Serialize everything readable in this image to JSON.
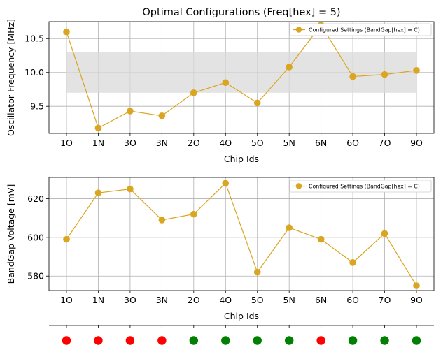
{
  "chart_data": [
    {
      "type": "line",
      "title": "Optimal Configurations  (Freq[hex] = 5)",
      "xlabel": "Chip Ids",
      "ylabel": "Oscillator Frequency [MHz]",
      "categories": [
        "1O",
        "1N",
        "3O",
        "3N",
        "2O",
        "4O",
        "5O",
        "5N",
        "6N",
        "6O",
        "7O",
        "9O"
      ],
      "series": [
        {
          "name": "Configured Settings (BandGap[hex] = C)",
          "values": [
            10.6,
            9.18,
            9.43,
            9.36,
            9.7,
            9.85,
            9.55,
            10.08,
            10.7,
            9.94,
            9.97,
            10.03
          ],
          "color": "#daa520"
        }
      ],
      "band": {
        "low": 9.7,
        "high": 10.3,
        "color": "#d9d9d9"
      },
      "ylim": [
        9.1,
        10.75
      ],
      "yticks": [
        9.5,
        10.0,
        10.5
      ],
      "ytick_labels": [
        "9.5",
        "10.0",
        "10.5"
      ],
      "grid": true,
      "legend": "top-right"
    },
    {
      "type": "line",
      "title": "",
      "xlabel": "Chip Ids",
      "ylabel": "BandGap Voltage [mV]",
      "categories": [
        "1O",
        "1N",
        "3O",
        "3N",
        "2O",
        "4O",
        "5O",
        "5N",
        "6N",
        "6O",
        "7O",
        "9O"
      ],
      "series": [
        {
          "name": "Configured Settings (BandGap[hex] = C)",
          "values": [
            599,
            623,
            625,
            609,
            612,
            628,
            582,
            605,
            599,
            587,
            602,
            575
          ],
          "color": "#daa520"
        }
      ],
      "ylim": [
        572.5,
        631
      ],
      "yticks": [
        580,
        600,
        620
      ],
      "ytick_labels": [
        "580",
        "600",
        "620"
      ],
      "grid": true,
      "legend": "top-right"
    },
    {
      "type": "status",
      "categories": [
        "1O",
        "1N",
        "3O",
        "3N",
        "2O",
        "4O",
        "5O",
        "5N",
        "6N",
        "6O",
        "7O",
        "9O"
      ],
      "statuses": [
        "fail",
        "fail",
        "fail",
        "fail",
        "pass",
        "pass",
        "pass",
        "pass",
        "fail",
        "pass",
        "pass",
        "pass"
      ],
      "colors": {
        "pass": "#008000",
        "fail": "#ff0000"
      }
    }
  ]
}
